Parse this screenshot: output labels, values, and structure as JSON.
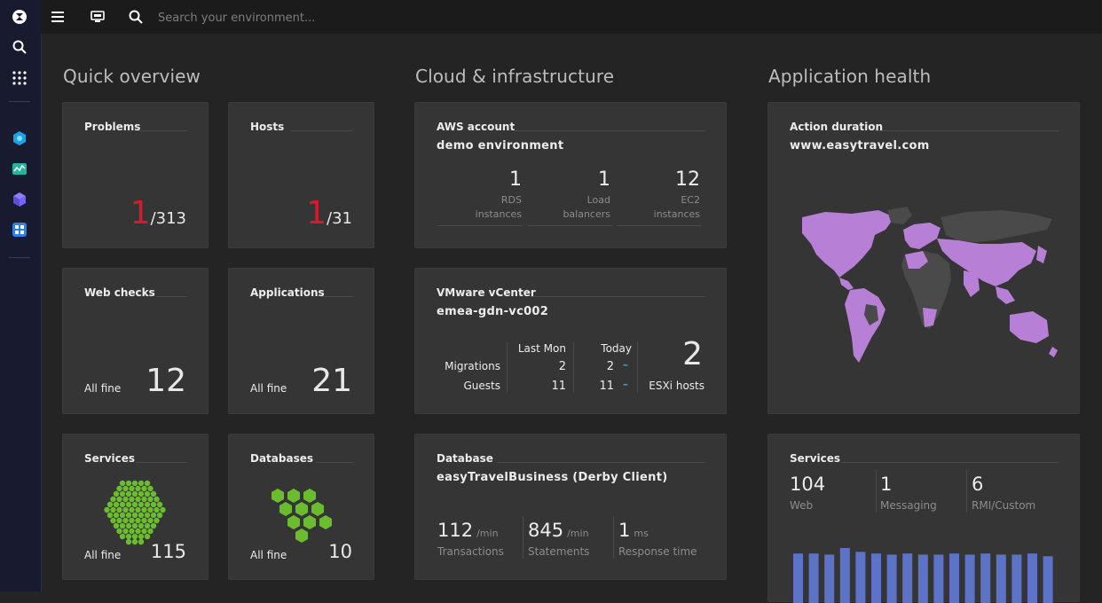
{
  "search": {
    "placeholder": "Search your environment..."
  },
  "sections": {
    "quick_overview": "Quick overview",
    "cloud_infra": "Cloud & infrastructure",
    "app_health": "Application health"
  },
  "problems": {
    "title": "Problems",
    "count": "1",
    "total": "/313"
  },
  "hosts": {
    "title": "Hosts",
    "count": "1",
    "total": "/31"
  },
  "web_checks": {
    "title": "Web checks",
    "status": "All fine",
    "value": "12"
  },
  "applications": {
    "title": "Applications",
    "status": "All fine",
    "value": "21"
  },
  "services_tile": {
    "title": "Services",
    "status": "All fine",
    "value": "115"
  },
  "databases_tile": {
    "title": "Databases",
    "status": "All fine",
    "value": "10"
  },
  "aws": {
    "title": "AWS account",
    "name": "demo environment",
    "stats": [
      {
        "value": "1",
        "label1": "RDS",
        "label2": "instances"
      },
      {
        "value": "1",
        "label1": "Load",
        "label2": "balancers"
      },
      {
        "value": "12",
        "label1": "EC2",
        "label2": "instances"
      }
    ]
  },
  "vmware": {
    "title": "VMware vCenter",
    "name": "emea-gdn-vc002",
    "col_last": "Last Mon",
    "col_today": "Today",
    "rows": [
      {
        "label": "Migrations",
        "last": "2",
        "today": "2"
      },
      {
        "label": "Guests",
        "last": "11",
        "today": "11"
      }
    ],
    "esxi_value": "2",
    "esxi_label": "ESXi hosts"
  },
  "database": {
    "title": "Database",
    "name": "easyTravelBusiness (Derby Client)",
    "metrics": [
      {
        "value": "112",
        "unit": "/min",
        "label": "Transactions"
      },
      {
        "value": "845",
        "unit": "/min",
        "label": "Statements"
      },
      {
        "value": "1",
        "unit": "ms",
        "label": "Response time"
      }
    ]
  },
  "action_duration": {
    "title": "Action duration",
    "site": "www.easytravel.com"
  },
  "app_services": {
    "title": "Services",
    "items": [
      {
        "value": "104",
        "label": "Web"
      },
      {
        "value": "1",
        "label": "Messaging"
      },
      {
        "value": "6",
        "label": "RMI/Custom"
      }
    ],
    "bars": [
      0.9,
      0.9,
      0.88,
      1.0,
      0.93,
      0.9,
      0.88,
      0.9,
      0.88,
      0.88,
      0.9,
      0.88,
      0.9,
      0.88,
      0.88,
      0.9,
      0.85
    ]
  },
  "colors": {
    "accent_red": "#dc172a",
    "green": "#6bbd2f",
    "map_purple": "#b77fd6",
    "bar_blue": "#5d73c8",
    "dash_blue": "#2d9bde"
  },
  "icons": {
    "sidebar": [
      "dynatrace-logo-icon",
      "search-icon",
      "apps-grid-icon",
      "infrastructure-icon",
      "monitoring-icon",
      "cube-icon",
      "dashboard-icon"
    ],
    "topbar": [
      "menu-icon",
      "display-icon",
      "search-icon"
    ]
  }
}
